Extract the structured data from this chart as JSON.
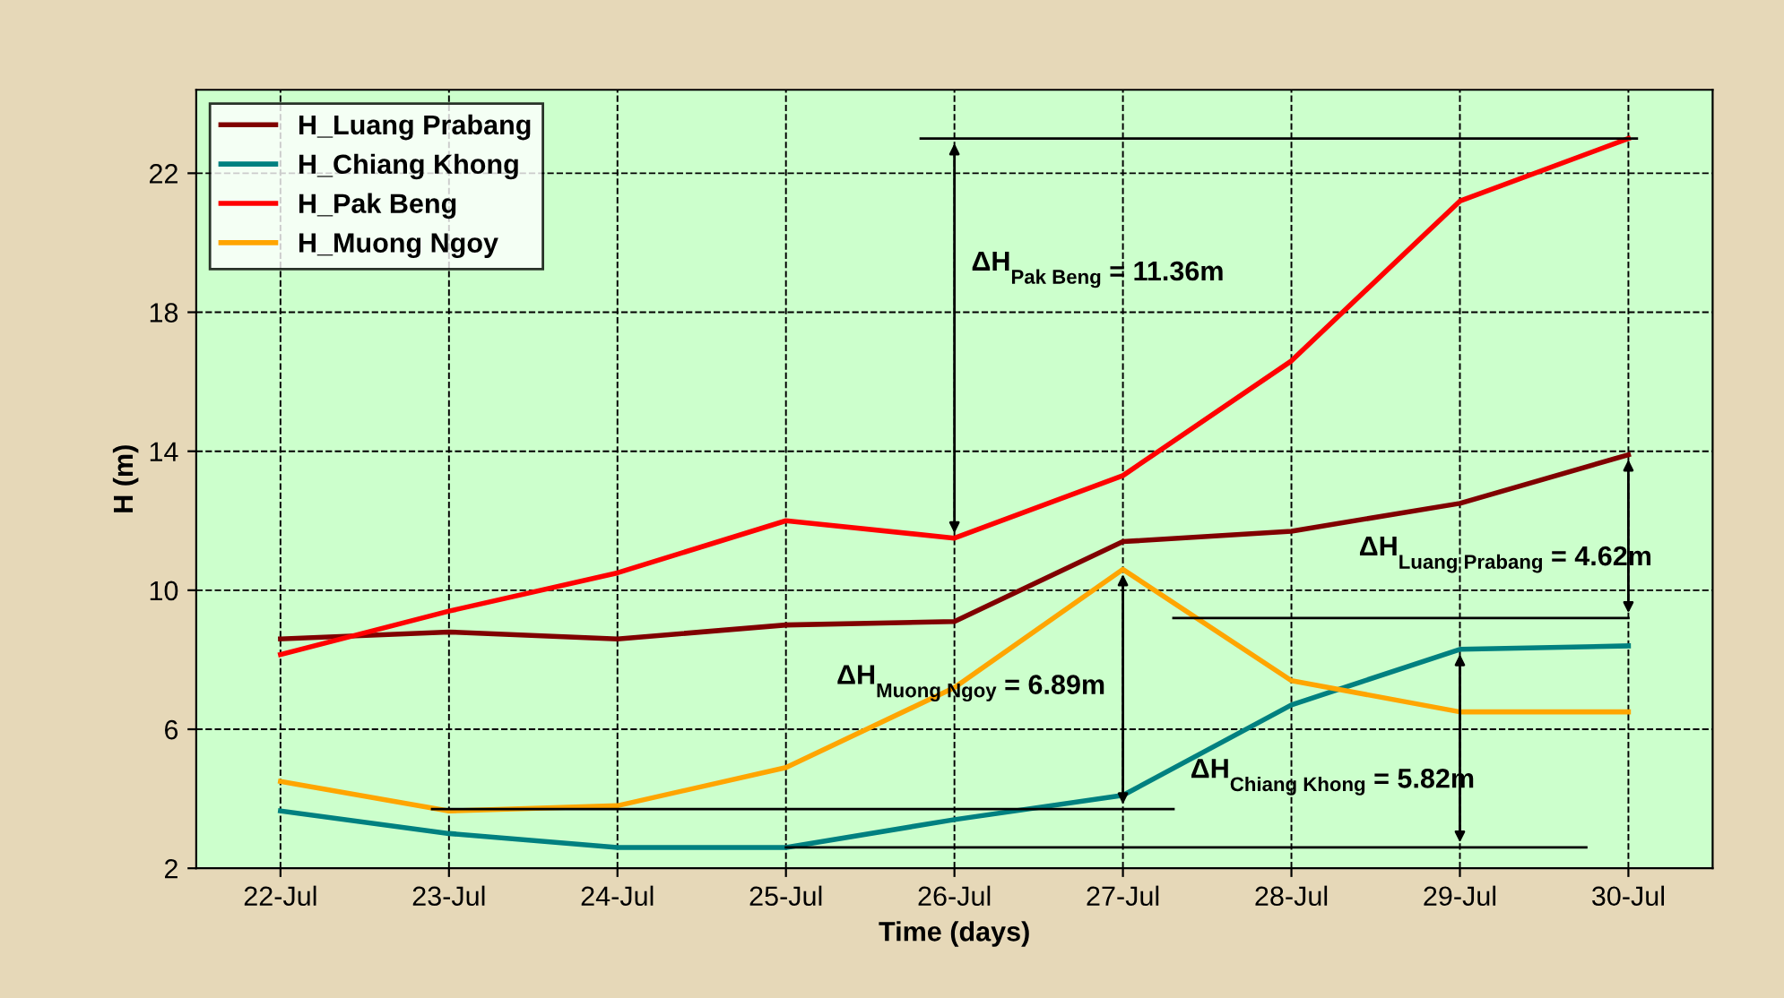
{
  "chart_data": {
    "type": "line",
    "xlabel": "Time (days)",
    "ylabel": "H (m)",
    "categories": [
      "22-Jul",
      "23-Jul",
      "24-Jul",
      "25-Jul",
      "26-Jul",
      "27-Jul",
      "28-Jul",
      "29-Jul",
      "30-Jul"
    ],
    "series": [
      {
        "name": "H_Luang Prabang",
        "color": "#800000",
        "values": [
          8.6,
          8.8,
          8.6,
          9.0,
          9.1,
          11.4,
          11.7,
          12.5,
          13.9
        ]
      },
      {
        "name": "H_Chiang Khong",
        "color": "#008080",
        "values": [
          3.65,
          3.0,
          2.6,
          2.6,
          3.4,
          4.1,
          6.7,
          8.3,
          8.4
        ]
      },
      {
        "name": "H_Pak Beng",
        "color": "#ff0000",
        "values": [
          8.15,
          9.4,
          10.5,
          12.0,
          11.5,
          13.3,
          16.6,
          21.2,
          23.0
        ]
      },
      {
        "name": "H_Muong Ngoy",
        "color": "#ffa500",
        "values": [
          4.5,
          3.65,
          3.8,
          4.9,
          7.2,
          10.6,
          7.4,
          6.5,
          6.5
        ]
      }
    ],
    "annotations": [
      "ΔH$_{Luang Prabang}$ = 4.62m",
      "ΔH$_{Chiang Khong}$ = 5.82m",
      "ΔH$_{Pak Beng}$ = 11.36m",
      "ΔH$_{Muong Ngoy}$ = 6.89m"
    ],
    "ref_lines": [
      {
        "axis": "y",
        "value": 9.2,
        "color": "#000000"
      },
      {
        "axis": "y",
        "value": 2.6,
        "color": "#000000"
      },
      {
        "axis": "y",
        "value": 23.0,
        "color": "#000000"
      },
      {
        "axis": "y",
        "value": 3.7,
        "color": "#000000"
      }
    ],
    "ylim": [
      2,
      24.4
    ],
    "yticks": [
      2,
      6,
      10,
      14,
      18,
      22
    ],
    "grid": true,
    "legend": "top left",
    "marker": "none",
    "line_style": "solid"
  }
}
